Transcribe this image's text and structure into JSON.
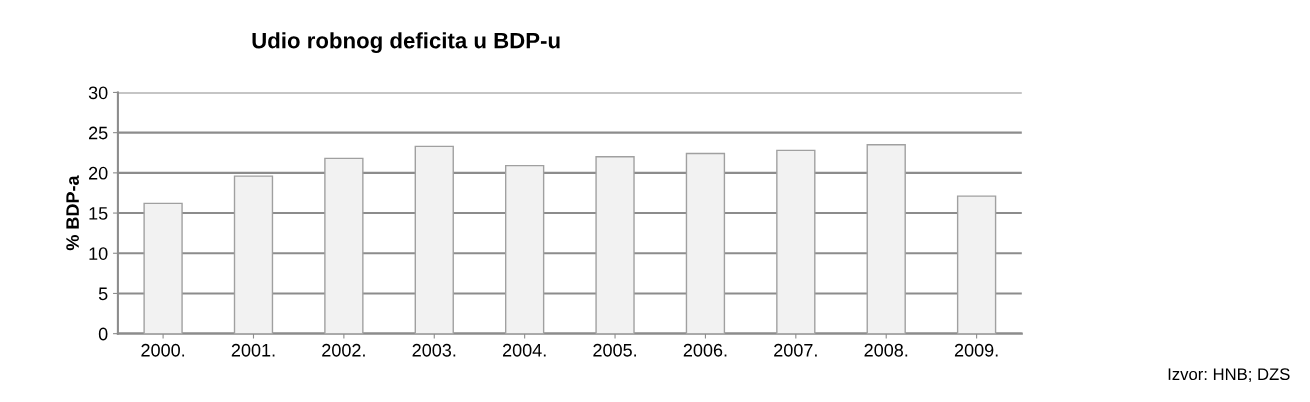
{
  "chart_data": {
    "type": "bar",
    "title": "Udio robnog deficita u BDP-u",
    "ylabel": "% BDP-a",
    "categories": [
      "2000.",
      "2001.",
      "2002.",
      "2003.",
      "2004.",
      "2005.",
      "2006.",
      "2007.",
      "2008.",
      "2009."
    ],
    "values": [
      16.2,
      19.6,
      21.8,
      23.3,
      20.9,
      22.0,
      22.4,
      22.8,
      23.5,
      17.1
    ],
    "color": "#f2f2f2",
    "ylim": [
      0,
      30
    ],
    "yticks": [
      0,
      5,
      10,
      15,
      20,
      25,
      30
    ],
    "grid": "y",
    "annotations": [
      "Izvor: HNB; DZS"
    ]
  }
}
